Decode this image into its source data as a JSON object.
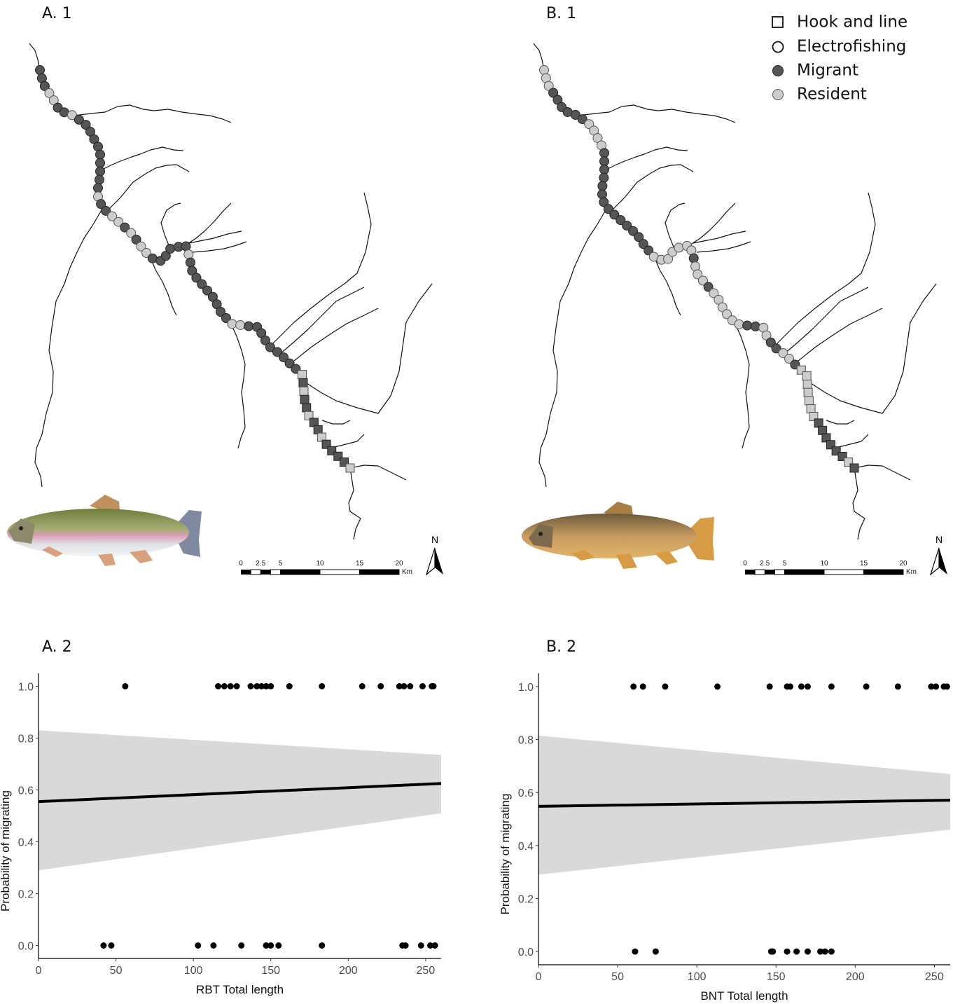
{
  "maps": {
    "panels": [
      "A. 1",
      "B. 1"
    ],
    "legend": [
      "Hook and line",
      "Electrofishing",
      "Migrant",
      "Resident"
    ],
    "scale_ticks": [
      0,
      2.5,
      5,
      10,
      15,
      20
    ],
    "scale_unit": "Km",
    "north": "N"
  },
  "chart_data": [
    {
      "type": "scatter",
      "title": "A. 2",
      "x_label": "RBT Total length",
      "y_label": "Probability of migrating",
      "xlim": [
        0,
        260
      ],
      "ylim": [
        -0.05,
        1.05
      ],
      "xticks": [
        0,
        50,
        100,
        150,
        200,
        250
      ],
      "yticks": [
        {
          "value": 0,
          "label": "0.0"
        },
        {
          "value": 0.2,
          "label": "0.2"
        },
        {
          "value": 0.4,
          "label": "0.4"
        },
        {
          "value": 0.6,
          "label": "0.6"
        },
        {
          "value": 0.8,
          "label": "0.8"
        },
        {
          "value": 1,
          "label": "1.0"
        }
      ],
      "points": {
        "color": "#000000",
        "x": [
          56,
          116,
          120,
          124,
          128,
          137,
          141,
          144,
          147,
          150,
          162,
          183,
          209,
          221,
          233,
          236,
          240,
          248,
          254,
          255,
          42,
          47,
          103,
          113,
          131,
          147,
          150,
          155,
          183,
          235,
          237,
          247,
          253,
          256
        ],
        "y": [
          1,
          1,
          1,
          1,
          1,
          1,
          1,
          1,
          1,
          1,
          1,
          1,
          1,
          1,
          1,
          1,
          1,
          1,
          1,
          1,
          0,
          0,
          0,
          0,
          0,
          0,
          0,
          0,
          0,
          0,
          0,
          0,
          0,
          0
        ]
      },
      "fit": {
        "color": "#000000",
        "x": [
          0,
          260
        ],
        "y": [
          0.555,
          0.625
        ]
      },
      "band": {
        "color": "#d9d9d9",
        "x": [
          0,
          260
        ],
        "upper": [
          0.83,
          0.735
        ],
        "lower": [
          0.29,
          0.51
        ]
      }
    },
    {
      "type": "scatter",
      "title": "B. 2",
      "x_label": "BNT Total length",
      "y_label": "Probability of migrating",
      "xlim": [
        0,
        260
      ],
      "ylim": [
        -0.05,
        1.05
      ],
      "xticks": [
        0,
        50,
        100,
        150,
        200,
        250
      ],
      "yticks": [
        {
          "value": 0,
          "label": "0.0"
        },
        {
          "value": 0.2,
          "label": "0.2"
        },
        {
          "value": 0.4,
          "label": "0.4"
        },
        {
          "value": 0.6,
          "label": "0.6"
        },
        {
          "value": 0.8,
          "label": "0.8"
        },
        {
          "value": 1,
          "label": "1.0"
        }
      ],
      "points": {
        "color": "#000000",
        "x": [
          60,
          66,
          80,
          113,
          146,
          157,
          159,
          166,
          170,
          185,
          207,
          227,
          248,
          251,
          256,
          258,
          61,
          74,
          147,
          148,
          157,
          163,
          170,
          178,
          181,
          185
        ],
        "y": [
          1,
          1,
          1,
          1,
          1,
          1,
          1,
          1,
          1,
          1,
          1,
          1,
          1,
          1,
          1,
          1,
          0,
          0,
          0,
          0,
          0,
          0,
          0,
          0,
          0,
          0
        ]
      },
      "fit": {
        "color": "#000000",
        "x": [
          0,
          260
        ],
        "y": [
          0.548,
          0.571
        ]
      },
      "band": {
        "color": "#d9d9d9",
        "x": [
          0,
          260
        ],
        "upper": [
          0.815,
          0.67
        ],
        "lower": [
          0.29,
          0.46
        ]
      }
    }
  ]
}
